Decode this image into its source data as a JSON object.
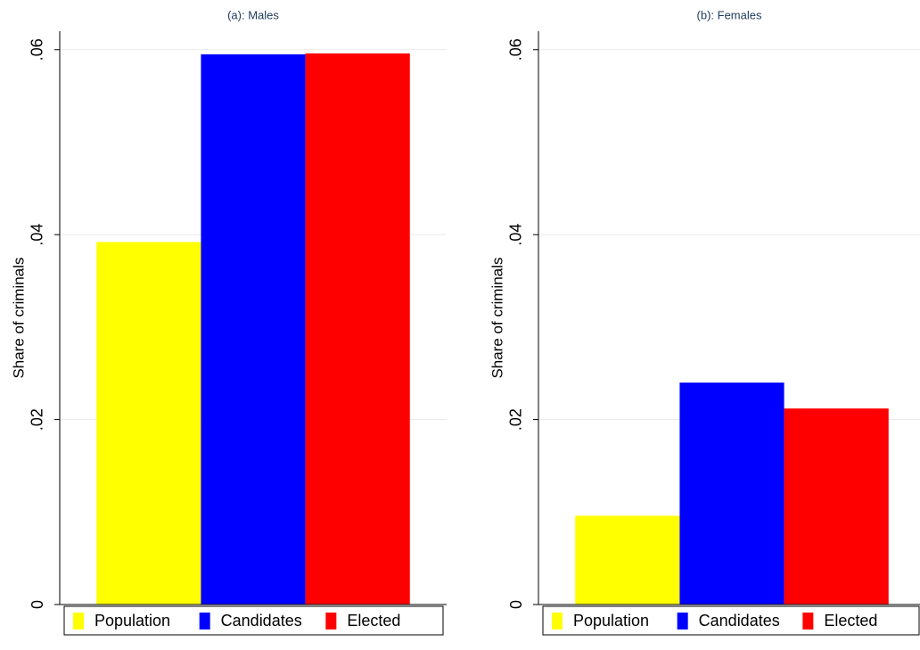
{
  "chart_data": [
    {
      "type": "bar",
      "title": "(a): Males",
      "y_label": "Share of criminals",
      "series": [
        {
          "name": "Population",
          "color": "#ffff00",
          "values": [
            0.0392
          ]
        },
        {
          "name": "Candidates",
          "color": "#0000ff",
          "values": [
            0.0595
          ]
        },
        {
          "name": "Elected",
          "color": "#ff0000",
          "values": [
            0.0596
          ]
        }
      ],
      "ylim": [
        0,
        0.062
      ],
      "yticks": [
        0,
        {
          "value": 0.02,
          "label": ".02"
        },
        {
          "value": 0.04,
          "label": ".04"
        },
        {
          "value": 0.06,
          "label": ".06"
        }
      ],
      "grid": true
    },
    {
      "type": "bar",
      "title": "(b): Females",
      "y_label": "Share of criminals",
      "series": [
        {
          "name": "Population",
          "color": "#ffff00",
          "values": [
            0.0096
          ]
        },
        {
          "name": "Candidates",
          "color": "#0000ff",
          "values": [
            0.024
          ]
        },
        {
          "name": "Elected",
          "color": "#ff0000",
          "values": [
            0.0212
          ]
        }
      ],
      "ylim": [
        0,
        0.062
      ],
      "yticks": [
        0,
        {
          "value": 0.02,
          "label": ".02"
        },
        {
          "value": 0.04,
          "label": ".04"
        },
        {
          "value": 0.06,
          "label": ".06"
        }
      ],
      "grid": true
    }
  ]
}
